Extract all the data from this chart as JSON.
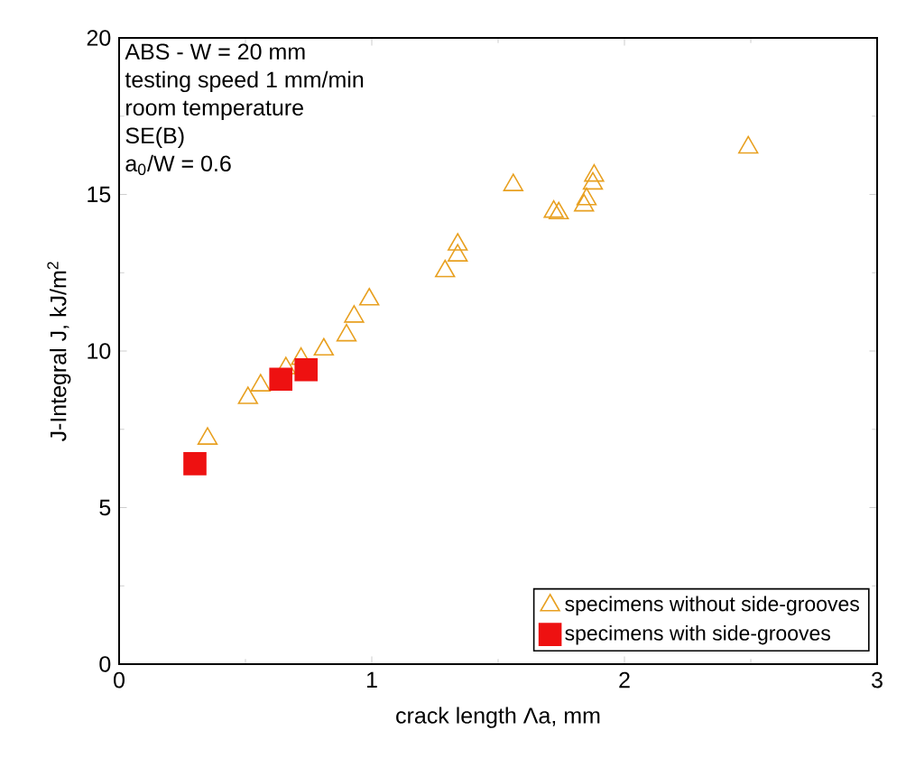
{
  "chart_data": {
    "type": "scatter",
    "xlabel": "crack length Λa, mm",
    "ylabel": "J-Integral J, kJ/m$^{2}$",
    "annotations": [
      "ABS - W = 20 mm",
      "testing speed 1 mm/min",
      "room temperature",
      "SE(B)",
      "a$_{0}$/W = 0.6"
    ],
    "xlim": [
      0,
      3
    ],
    "ylim": [
      0,
      20
    ],
    "xticks": [
      0,
      1,
      2,
      3
    ],
    "yticks": [
      0,
      5,
      10,
      15,
      20
    ],
    "grid": false,
    "legend": "bottom right",
    "series": [
      {
        "name": "specimens without side-grooves",
        "color": "#e8a020",
        "marker": "triangle",
        "x": [
          0.35,
          0.51,
          0.56,
          0.66,
          0.72,
          0.81,
          0.9,
          0.93,
          0.99,
          1.29,
          1.34,
          1.34,
          1.56,
          1.72,
          1.74,
          1.84,
          1.85,
          1.875,
          1.88,
          2.49
        ],
        "values": [
          7.2,
          8.5,
          8.9,
          9.45,
          9.75,
          10.05,
          10.5,
          11.1,
          11.65,
          12.55,
          13.05,
          13.4,
          15.3,
          14.45,
          14.4,
          14.65,
          14.85,
          15.35,
          15.6,
          16.5
        ]
      },
      {
        "name": "specimens with side-grooves",
        "color": "#ee1111",
        "marker": "square",
        "x": [
          0.3,
          0.64,
          0.74
        ],
        "values": [
          6.4,
          9.1,
          9.4
        ]
      }
    ]
  }
}
